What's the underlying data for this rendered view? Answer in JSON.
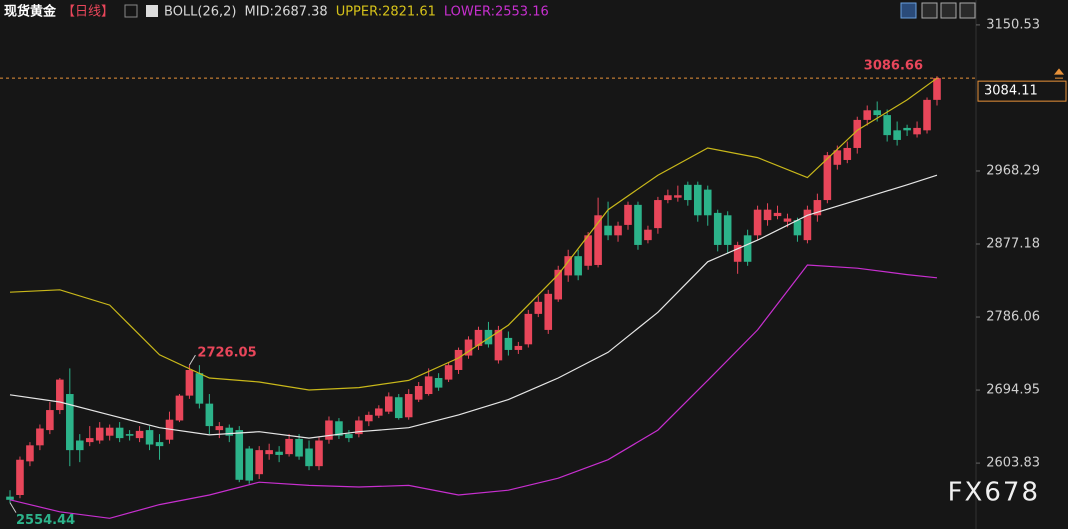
{
  "chart_data": {
    "type": "candlestick",
    "title": "现货黄金",
    "subtitle": "【日线】",
    "indicator_labels": [
      {
        "text": "BOLL(26,2)",
        "color": "#d8d8d8"
      },
      {
        "text": "MID:2687.38",
        "color": "#d8d8d8"
      },
      {
        "text": "UPPER:2821.61",
        "color": "#d6c21a"
      },
      {
        "text": "LOWER:2553.16",
        "color": "#c72fcf"
      }
    ],
    "watermark": "FX678",
    "up_color": "#e8465a",
    "down_color": "#2cb38a",
    "ylim": [
      2521.6,
      3181.6
    ],
    "yticks": [
      2603.83,
      2694.95,
      2786.06,
      2877.18,
      2968.29,
      3150.53
    ],
    "open": [
      2562,
      2564,
      2606,
      2626,
      2645,
      2670,
      2690,
      2632,
      2630,
      2632,
      2638,
      2648,
      2640,
      2635,
      2645,
      2630,
      2633,
      2657,
      2688,
      2716,
      2678,
      2645,
      2648,
      2645,
      2622,
      2590,
      2615,
      2618,
      2615,
      2634,
      2622,
      2600,
      2633,
      2656,
      2640,
      2640,
      2656,
      2663,
      2668,
      2686,
      2661,
      2683,
      2690,
      2710,
      2708,
      2720,
      2738,
      2750,
      2770,
      2732,
      2760,
      2745,
      2752,
      2790,
      2770,
      2808,
      2838,
      2862,
      2850,
      2851,
      2900,
      2888,
      2901,
      2926,
      2882,
      2897,
      2932,
      2935,
      2951,
      2951,
      2945,
      2916,
      2913,
      2855,
      2888,
      2888,
      2907,
      2912,
      2905,
      2907,
      2882,
      2913,
      2932,
      2976,
      2982,
      2997,
      3032,
      3044,
      3038,
      3019,
      3022,
      3014,
      3019,
      3057
    ],
    "high": [
      2570,
      2612,
      2630,
      2652,
      2680,
      2710,
      2722,
      2640,
      2650,
      2655,
      2652,
      2655,
      2645,
      2650,
      2650,
      2640,
      2668,
      2690,
      2726.05,
      2726,
      2690,
      2655,
      2652,
      2650,
      2625,
      2625,
      2628,
      2625,
      2640,
      2640,
      2632,
      2636,
      2662,
      2660,
      2645,
      2662,
      2668,
      2676,
      2692,
      2690,
      2696,
      2705,
      2722,
      2716,
      2730,
      2748,
      2762,
      2774,
      2780,
      2775,
      2768,
      2755,
      2795,
      2812,
      2820,
      2850,
      2870,
      2870,
      2892,
      2935,
      2930,
      2905,
      2930,
      2930,
      2900,
      2936,
      2945,
      2950,
      2955,
      2955,
      2950,
      2920,
      2918,
      2880,
      2895,
      2925,
      2928,
      2925,
      2915,
      2910,
      2925,
      2940,
      2992,
      3000,
      3005,
      3036,
      3050,
      3055,
      3045,
      3030,
      3026,
      3030,
      3060,
      3086.66
    ],
    "low": [
      2554.44,
      2560,
      2600,
      2620,
      2640,
      2665,
      2600,
      2605,
      2625,
      2628,
      2632,
      2630,
      2632,
      2630,
      2620,
      2608,
      2628,
      2655,
      2684,
      2672,
      2640,
      2635,
      2630,
      2580,
      2578,
      2584,
      2608,
      2605,
      2612,
      2608,
      2595,
      2595,
      2628,
      2634,
      2630,
      2636,
      2650,
      2660,
      2665,
      2658,
      2658,
      2680,
      2688,
      2694,
      2705,
      2715,
      2734,
      2745,
      2748,
      2728,
      2738,
      2740,
      2748,
      2786,
      2765,
      2805,
      2830,
      2832,
      2845,
      2848,
      2882,
      2880,
      2895,
      2870,
      2878,
      2890,
      2928,
      2930,
      2925,
      2905,
      2900,
      2868,
      2865,
      2840,
      2850,
      2882,
      2900,
      2908,
      2898,
      2880,
      2878,
      2905,
      2928,
      2970,
      2978,
      2990,
      3025,
      3030,
      3005,
      3000,
      3012,
      3010,
      3015,
      3050
    ],
    "close": [
      2558,
      2608,
      2626,
      2647,
      2670,
      2708,
      2620,
      2620,
      2635,
      2648,
      2648,
      2635,
      2638,
      2644,
      2627,
      2625,
      2658,
      2688,
      2720,
      2678,
      2650,
      2650,
      2638,
      2583,
      2582,
      2620,
      2620,
      2614,
      2634,
      2612,
      2600,
      2632,
      2657,
      2638,
      2635,
      2657,
      2664,
      2672,
      2687,
      2660,
      2690,
      2700,
      2712,
      2698,
      2726,
      2745,
      2758,
      2770,
      2752,
      2770,
      2745,
      2750,
      2790,
      2805,
      2815,
      2845,
      2862,
      2838,
      2888,
      2913,
      2888,
      2900,
      2926,
      2876,
      2895,
      2932,
      2938,
      2938,
      2932,
      2913,
      2913,
      2876,
      2876,
      2876,
      2855,
      2920,
      2920,
      2916,
      2909,
      2888,
      2920,
      2932,
      2988,
      2994,
      2997,
      3032,
      3044,
      3038,
      3013,
      3007,
      3019,
      3022,
      3057,
      3084.11
    ],
    "lines": [
      {
        "color": "#e6e6e6",
        "x": [
          0,
          5,
          10,
          15,
          20,
          25,
          30,
          35,
          40,
          45,
          50,
          55,
          60,
          65,
          70,
          75,
          80,
          85,
          90,
          93
        ],
        "values": [
          2689,
          2680,
          2664,
          2648,
          2639,
          2643,
          2635,
          2643,
          2648,
          2664,
          2683,
          2710,
          2742,
          2792,
          2855,
          2882,
          2913,
          2932,
          2951,
          2963
        ]
      },
      {
        "color": "#c9b81a",
        "x": [
          0,
          5,
          10,
          15,
          20,
          25,
          30,
          35,
          40,
          45,
          50,
          55,
          60,
          65,
          70,
          75,
          80,
          85,
          90,
          93
        ],
        "values": [
          2817,
          2820,
          2801,
          2739,
          2710,
          2705,
          2695,
          2698,
          2707,
          2735,
          2776,
          2839,
          2920,
          2963,
          2997,
          2985,
          2960,
          3019,
          3057,
          3084
        ]
      },
      {
        "color": "#c72fcf",
        "x": [
          0,
          5,
          10,
          15,
          20,
          25,
          30,
          35,
          40,
          45,
          50,
          55,
          60,
          65,
          70,
          75,
          80,
          85,
          90,
          93
        ],
        "values": [
          2558,
          2543,
          2535,
          2552,
          2564,
          2580,
          2576,
          2574,
          2576,
          2564,
          2570,
          2585,
          2608,
          2645,
          2707,
          2770,
          2851,
          2847,
          2839,
          2835
        ]
      }
    ]
  }
}
